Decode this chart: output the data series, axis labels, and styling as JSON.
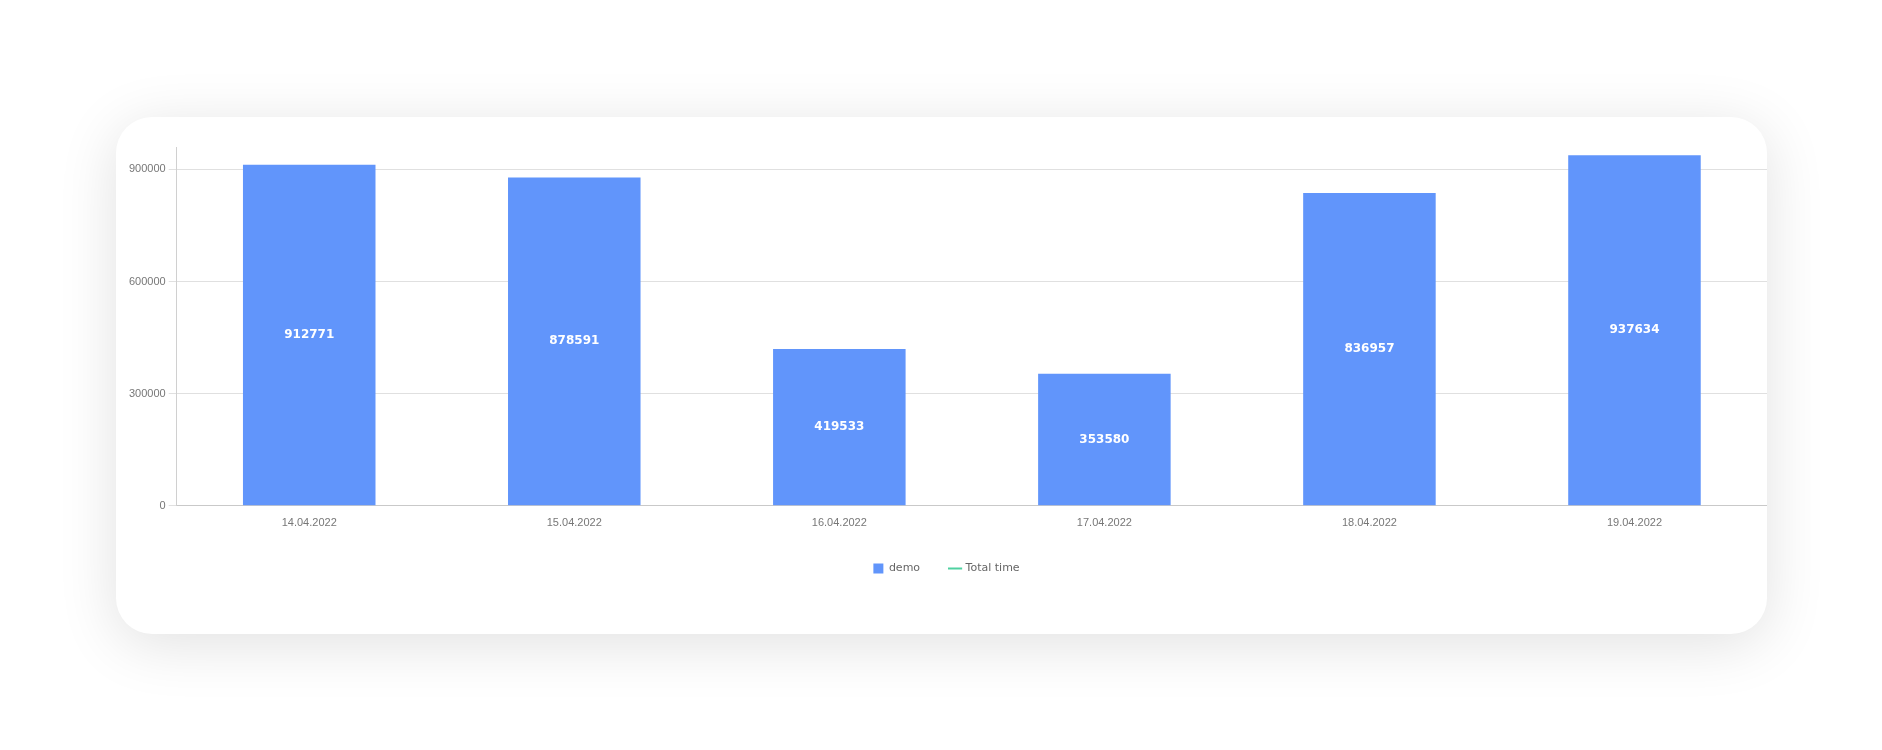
{
  "chart_data": {
    "type": "bar",
    "categories": [
      "14.04.2022",
      "15.04.2022",
      "16.04.2022",
      "17.04.2022",
      "18.04.2022",
      "19.04.2022"
    ],
    "series": [
      {
        "name": "demo",
        "color": "#6195fb",
        "values": [
          912771,
          878591,
          419533,
          353580,
          836957,
          937634
        ]
      },
      {
        "name": "Total time",
        "type": "line",
        "color": "#4fd1a0",
        "values": [
          null,
          null,
          null,
          null,
          null,
          null
        ]
      }
    ],
    "ylim": [
      0,
      960000
    ],
    "yticks": [
      0,
      300000,
      600000,
      900000
    ],
    "grid": "y",
    "legend": "bottom",
    "data_labels": true
  }
}
